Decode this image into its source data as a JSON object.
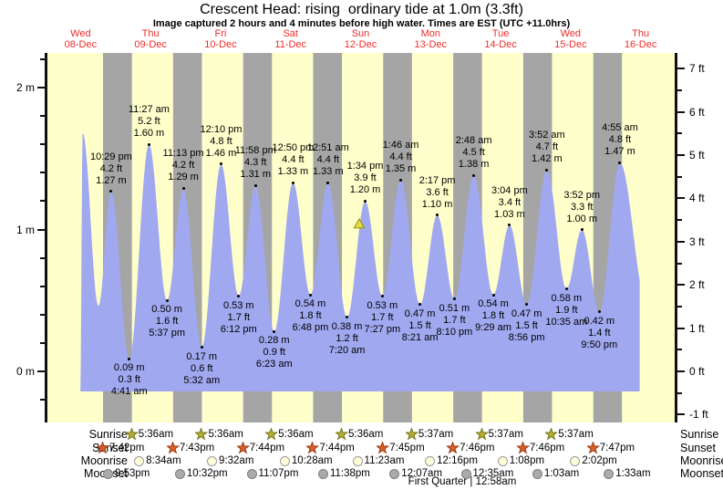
{
  "title": "Crescent Head: rising  ordinary tide at 1.0m (3.3ft)",
  "subtitle": "Image captured 2 hours and 4 minutes before high water. Times are EST (UTC +11.0hrs)",
  "days": [
    {
      "name": "Wed",
      "date": "08-Dec"
    },
    {
      "name": "Thu",
      "date": "09-Dec"
    },
    {
      "name": "Fri",
      "date": "10-Dec"
    },
    {
      "name": "Sat",
      "date": "11-Dec"
    },
    {
      "name": "Sun",
      "date": "12-Dec"
    },
    {
      "name": "Mon",
      "date": "13-Dec"
    },
    {
      "name": "Tue",
      "date": "14-Dec"
    },
    {
      "name": "Wed",
      "date": "15-Dec"
    },
    {
      "name": "Thu",
      "date": "16-Dec"
    }
  ],
  "axes": {
    "left_ticks": [
      {
        "m": 0,
        "label": "0 m"
      },
      {
        "m": 1,
        "label": "1 m"
      },
      {
        "m": 2,
        "label": "2 m"
      }
    ],
    "right_ticks": [
      {
        "ft": -1,
        "label": "-1 ft"
      },
      {
        "ft": 0,
        "label": "0 ft"
      },
      {
        "ft": 1,
        "label": "1 ft"
      },
      {
        "ft": 2,
        "label": "2 ft"
      },
      {
        "ft": 3,
        "label": "3 ft"
      },
      {
        "ft": 4,
        "label": "4 ft"
      },
      {
        "ft": 5,
        "label": "5 ft"
      },
      {
        "ft": 6,
        "label": "6 ft"
      },
      {
        "ft": 7,
        "label": "7 ft"
      }
    ]
  },
  "chart_data": {
    "type": "area",
    "title": "Crescent Head: rising  ordinary tide at 1.0m (3.3ft)",
    "x_unit": "days from Wed 08-Dec 00:00 (each day = 1.0)",
    "y_unit": "m",
    "ylim_m": [
      -0.36,
      2.24
    ],
    "ylim_ft": [
      -1.2,
      7.4
    ],
    "current_tide_m": 1.0,
    "current_marker": {
      "t": 4.48,
      "h": 1.04
    },
    "curve_start": {
      "t": 0.495,
      "h": -0.15
    },
    "curve_end": {
      "t": 8.58,
      "h": 0.5
    },
    "night_bands": [
      [
        0.8208,
        1.2333
      ],
      [
        1.8215,
        2.2333
      ],
      [
        2.8222,
        3.2333
      ],
      [
        3.8222,
        4.2333
      ],
      [
        4.8229,
        5.234
      ],
      [
        5.8236,
        6.234
      ],
      [
        6.8236,
        7.234
      ],
      [
        7.8243,
        8.234
      ]
    ],
    "extremes": [
      {
        "t": 0.53,
        "h": 1.68,
        "type": "high"
      },
      {
        "t": 0.755,
        "h": 0.46,
        "type": "low"
      },
      {
        "t": 0.9368,
        "h": 1.27,
        "type": "high",
        "time": "10:29 pm",
        "ft": "4.2 ft",
        "m": "1.27 m"
      },
      {
        "t": 1.1951,
        "h": 0.09,
        "type": "low",
        "time": "4:41 am",
        "ft": "0.3 ft",
        "m": "0.09 m"
      },
      {
        "t": 1.4771,
        "h": 1.6,
        "type": "high",
        "time": "11:27 am",
        "ft": "5.2 ft",
        "m": "1.60 m"
      },
      {
        "t": 1.734,
        "h": 0.5,
        "type": "low",
        "time": "5:37 pm",
        "ft": "1.6 ft",
        "m": "0.50 m"
      },
      {
        "t": 1.9674,
        "h": 1.29,
        "type": "high",
        "time": "11:13 pm",
        "ft": "4.2 ft",
        "m": "1.29 m"
      },
      {
        "t": 2.2306,
        "h": 0.17,
        "type": "low",
        "time": "5:32 am",
        "ft": "0.6 ft",
        "m": "0.17 m"
      },
      {
        "t": 2.5069,
        "h": 1.46,
        "type": "high",
        "time": "12:10 pm",
        "ft": "4.8 ft",
        "m": "1.46 m"
      },
      {
        "t": 2.7583,
        "h": 0.53,
        "type": "low",
        "time": "6:12 pm",
        "ft": "1.7 ft",
        "m": "0.53 m"
      },
      {
        "t": 2.9986,
        "h": 1.31,
        "type": "high",
        "time": "11:58 pm",
        "ft": "4.3 ft",
        "m": "1.31 m"
      },
      {
        "t": 3.266,
        "h": 0.28,
        "type": "low",
        "time": "6:23 am",
        "ft": "0.9 ft",
        "m": "0.28 m"
      },
      {
        "t": 3.5347,
        "h": 1.33,
        "type": "high",
        "time": "12:50 pm",
        "ft": "4.4 ft",
        "m": "1.33 m"
      },
      {
        "t": 3.7833,
        "h": 0.54,
        "type": "low",
        "time": "6:48 pm",
        "ft": "1.8 ft",
        "m": "0.54 m"
      },
      {
        "t": 4.0354,
        "h": 1.33,
        "type": "high",
        "time": "12:51 am",
        "ft": "4.4 ft",
        "m": "1.33 m"
      },
      {
        "t": 4.3056,
        "h": 0.38,
        "type": "low",
        "time": "7:20 am",
        "ft": "1.2 ft",
        "m": "0.38 m"
      },
      {
        "t": 4.5653,
        "h": 1.2,
        "type": "high",
        "time": "1:34 pm",
        "ft": "3.9 ft",
        "m": "1.20 m"
      },
      {
        "t": 4.8104,
        "h": 0.53,
        "type": "low",
        "time": "7:27 pm",
        "ft": "1.7 ft",
        "m": "0.53 m"
      },
      {
        "t": 5.0736,
        "h": 1.35,
        "type": "high",
        "time": "1:46 am",
        "ft": "4.4 ft",
        "m": "1.35 m"
      },
      {
        "t": 5.3479,
        "h": 0.47,
        "type": "low",
        "time": "8:21 am",
        "ft": "1.5 ft",
        "m": "0.47 m"
      },
      {
        "t": 5.5951,
        "h": 1.1,
        "type": "high",
        "time": "2:17 pm",
        "ft": "3.6 ft",
        "m": "1.10 m"
      },
      {
        "t": 5.8403,
        "h": 0.51,
        "type": "low",
        "time": "8:10 pm",
        "ft": "1.7 ft",
        "m": "0.51 m"
      },
      {
        "t": 6.1167,
        "h": 1.38,
        "type": "high",
        "time": "2:48 am",
        "ft": "4.5 ft",
        "m": "1.38 m"
      },
      {
        "t": 6.3951,
        "h": 0.54,
        "type": "low",
        "time": "9:29 am",
        "ft": "1.8 ft",
        "m": "0.54 m"
      },
      {
        "t": 6.6278,
        "h": 1.03,
        "type": "high",
        "time": "3:04 pm",
        "ft": "3.4 ft",
        "m": "1.03 m"
      },
      {
        "t": 6.8722,
        "h": 0.47,
        "type": "low",
        "time": "8:56 pm",
        "ft": "1.5 ft",
        "m": "0.47 m"
      },
      {
        "t": 7.1611,
        "h": 1.42,
        "type": "high",
        "time": "3:52 am",
        "ft": "4.7 ft",
        "m": "1.42 m"
      },
      {
        "t": 7.441,
        "h": 0.58,
        "type": "low",
        "time": "10:35 am",
        "ft": "1.9 ft",
        "m": "0.58 m"
      },
      {
        "t": 7.6611,
        "h": 1.0,
        "type": "high",
        "time": "3:52 pm",
        "ft": "3.3 ft",
        "m": "1.00 m"
      },
      {
        "t": 7.9097,
        "h": 0.42,
        "type": "low",
        "time": "9:50 pm",
        "ft": "1.4 ft",
        "m": "0.42 m"
      },
      {
        "t": 8.2049,
        "h": 1.47,
        "type": "high",
        "time": "4:55 am",
        "ft": "4.8 ft",
        "m": "1.47 m"
      }
    ]
  },
  "sun_moon": {
    "rows": [
      {
        "label": "Sunrise",
        "icon": "sunrise-star",
        "entries": [
          {
            "t": 1.2333,
            "time": "5:36am"
          },
          {
            "t": 2.2333,
            "time": "5:36am"
          },
          {
            "t": 3.2333,
            "time": "5:36am"
          },
          {
            "t": 4.2333,
            "time": "5:36am"
          },
          {
            "t": 5.234,
            "time": "5:37am"
          },
          {
            "t": 6.234,
            "time": "5:37am"
          },
          {
            "t": 7.234,
            "time": "5:37am"
          }
        ]
      },
      {
        "label": "Sunset",
        "icon": "sunset-star",
        "entries": [
          {
            "t": 0.8208,
            "time": "7:42pm"
          },
          {
            "t": 1.8215,
            "time": "7:43pm"
          },
          {
            "t": 2.8222,
            "time": "7:44pm"
          },
          {
            "t": 3.8222,
            "time": "7:44pm"
          },
          {
            "t": 4.8229,
            "time": "7:45pm"
          },
          {
            "t": 5.8236,
            "time": "7:46pm"
          },
          {
            "t": 6.8236,
            "time": "7:46pm"
          },
          {
            "t": 7.8243,
            "time": "7:47pm"
          }
        ]
      },
      {
        "label": "Moonrise",
        "icon": "moonrise-circle",
        "entries": [
          {
            "t": 1.3569,
            "time": "8:34am"
          },
          {
            "t": 2.3972,
            "time": "9:32am"
          },
          {
            "t": 3.4361,
            "time": "10:28am"
          },
          {
            "t": 4.4743,
            "time": "11:23am"
          },
          {
            "t": 5.5111,
            "time": "12:16pm"
          },
          {
            "t": 6.5472,
            "time": "1:08pm"
          },
          {
            "t": 7.5847,
            "time": "2:02pm"
          }
        ]
      },
      {
        "label": "Moonset",
        "icon": "moonset-circle",
        "entries": [
          {
            "t": 0.9118,
            "time": "9:53pm"
          },
          {
            "t": 1.9389,
            "time": "10:32pm"
          },
          {
            "t": 2.9632,
            "time": "11:07pm"
          },
          {
            "t": 3.9847,
            "time": "11:38pm"
          },
          {
            "t": 5.0049,
            "time": "12:07am"
          },
          {
            "t": 6.0243,
            "time": "12:35am"
          },
          {
            "t": 7.0438,
            "time": "1:03am"
          },
          {
            "t": 8.0646,
            "time": "1:33am"
          }
        ]
      }
    ],
    "moon_phase": "First Quarter | 12:58am"
  },
  "colors": {
    "plot_bg": "#ffffcc",
    "night_band": "#a5a5a5",
    "tide_fill": "#a0a8f0",
    "day_label": "#ee2c2c",
    "axis": "#111111",
    "sunrise_star_fill": "#b5ad35",
    "sunrise_star_stroke": "#77761c",
    "sunset_star_fill": "#da5f28",
    "sunset_star_stroke": "#9e3a14",
    "moonrise_fill": "#ffffd9",
    "moonrise_stroke": "#9a9a9a",
    "moonset_fill": "#ababab",
    "moonset_stroke": "#7f7f7f",
    "marker_fill": "#e6de45",
    "marker_stroke": "#8f8f00"
  }
}
